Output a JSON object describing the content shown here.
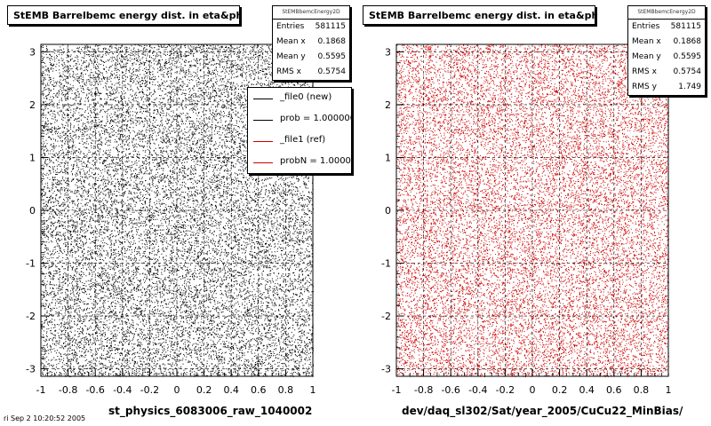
{
  "chart_data": [
    {
      "type": "scatter",
      "title": "StEMB Barrelbemc energy dist. in eta&phi",
      "xlabel": "st_physics_6083006_raw_1040002",
      "ylabel": "",
      "xlim": [
        -1,
        1
      ],
      "ylim": [
        -3.1416,
        3.1416
      ],
      "x_ticks": [
        "-1",
        "-0.8",
        "-0.6",
        "-0.4",
        "-0.2",
        "0",
        "0.2",
        "0.4",
        "0.6",
        "0.8",
        "1"
      ],
      "y_ticks": [
        "3",
        "2",
        "1",
        "0",
        "-1",
        "-2",
        "-3"
      ],
      "grid": true,
      "marker_color": "#000000",
      "distribution": "uniform",
      "stats": {
        "name": "StEMBbemcEnergy2D",
        "rows": [
          {
            "label": "Entries",
            "value": "581115"
          },
          {
            "label": "Mean x",
            "value": "0.1868"
          },
          {
            "label": "Mean y",
            "value": "0.5595"
          },
          {
            "label": "RMS x",
            "value": "0.5754"
          }
        ]
      },
      "legend": {
        "placement": "top-right",
        "entries": [
          {
            "label": "_file0 (new)",
            "color": "#000000"
          },
          {
            "label": "prob = 1.000000",
            "color": "#000000"
          },
          {
            "label": "_file1 (ref)",
            "color": "#cc0000"
          },
          {
            "label": "probN = 1.000000",
            "color": "#cc0000"
          }
        ]
      }
    },
    {
      "type": "scatter",
      "title": "StEMB Barrelbemc energy dist. in eta&phi",
      "xlabel": "dev/daq_sl302/Sat/year_2005/CuCu22_MinBias/",
      "ylabel": "",
      "xlim": [
        -1,
        1
      ],
      "ylim": [
        -3.1416,
        3.1416
      ],
      "x_ticks": [
        "-1",
        "-0.8",
        "-0.6",
        "-0.4",
        "-0.2",
        "0",
        "0.2",
        "0.4",
        "0.6",
        "0.8",
        "1"
      ],
      "y_ticks": [
        "3",
        "2",
        "1",
        "0",
        "-1",
        "-2",
        "-3"
      ],
      "grid": true,
      "marker_color": "#cc0000",
      "distribution": "uniform",
      "stats": {
        "name": "StEMBbemcEnergy2D",
        "rows": [
          {
            "label": "Entries",
            "value": "581115"
          },
          {
            "label": "Mean x",
            "value": "0.1868"
          },
          {
            "label": "Mean y",
            "value": "0.5595"
          },
          {
            "label": "RMS x",
            "value": "0.5754"
          },
          {
            "label": "RMS y",
            "value": "1.749"
          }
        ]
      }
    }
  ],
  "footer": "ri Sep  2 10:20:52 2005"
}
